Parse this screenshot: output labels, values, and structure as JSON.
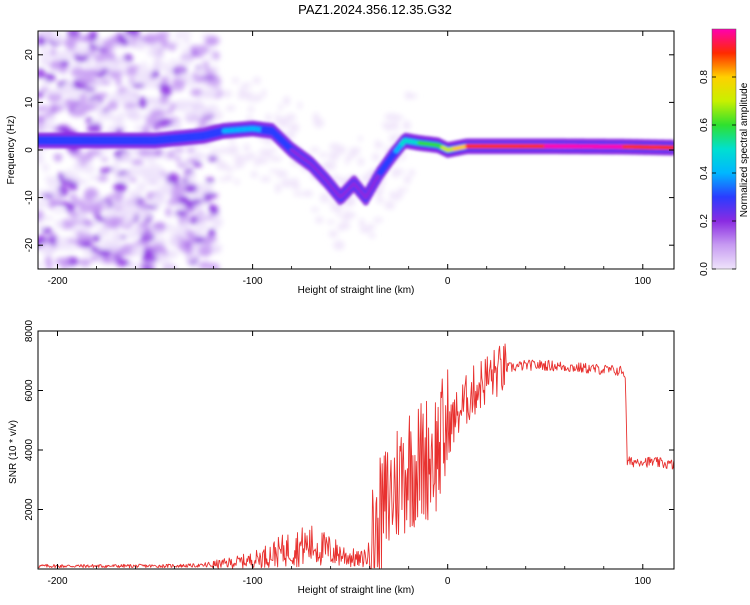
{
  "title": "PAZ1.2024.356.12.35.G32",
  "colors": {
    "snr_line": "#e8312f",
    "spectrogram_palette": [
      "#efe4fb",
      "#c79bf2",
      "#8a2be2",
      "#2a3cff",
      "#00b7ff",
      "#00e0d0",
      "#2fe02f",
      "#c8f000",
      "#ffd000",
      "#ff2a00",
      "#ff00b0"
    ]
  },
  "chart_data": [
    {
      "type": "heatmap",
      "xlabel": "Height of straight line (km)",
      "ylabel": "Frequency (Hz)",
      "xlim": [
        -210,
        116
      ],
      "ylim": [
        -25,
        25
      ],
      "xticks": [
        -200,
        -100,
        0,
        100
      ],
      "yticks": [
        -20,
        -10,
        0,
        10,
        20
      ],
      "grid": false,
      "colorbar": {
        "label": "Normalized spectral amplitude",
        "range": [
          0,
          1
        ],
        "ticks": [
          0.0,
          0.2,
          0.4,
          0.6,
          0.8
        ]
      },
      "ridge": {
        "x": [
          -210,
          -180,
          -150,
          -125,
          -115,
          -100,
          -90,
          -80,
          -70,
          -62,
          -55,
          -48,
          -42,
          -35,
          -28,
          -22,
          -15,
          -5,
          0,
          10,
          50,
          90,
          116
        ],
        "frequency": [
          2,
          2,
          2,
          3,
          4,
          4.5,
          4,
          0,
          -3,
          -6.5,
          -10,
          -7,
          -10,
          -5,
          -1,
          2,
          1.5,
          1,
          0,
          0.8,
          0.8,
          0.7,
          0.5
        ],
        "amplitude": [
          0.3,
          0.3,
          0.25,
          0.3,
          0.35,
          0.4,
          0.3,
          0.25,
          0.2,
          0.15,
          0.2,
          0.25,
          0.2,
          0.25,
          0.3,
          0.5,
          0.55,
          0.6,
          0.7,
          0.85,
          0.95,
          0.95,
          0.85
        ]
      }
    },
    {
      "type": "line",
      "xlabel": "Height of straight line (km)",
      "ylabel": "SNR (10 * v/v)",
      "xlim": [
        -210,
        116
      ],
      "ylim": [
        0,
        8000
      ],
      "xticks": [
        -200,
        -100,
        0,
        100
      ],
      "yticks": [
        2000,
        4000,
        6000,
        8000
      ],
      "grid": false,
      "series": [
        {
          "x": [
            -210,
            -180,
            -150,
            -125,
            -115,
            -100,
            -90,
            -80,
            -70,
            -60,
            -50,
            -45,
            -40,
            -35,
            -30,
            -25,
            -20,
            -15,
            -10,
            -5,
            0,
            5,
            10,
            15,
            20,
            25,
            30,
            40,
            50,
            60,
            70,
            80,
            90,
            91,
            92,
            95,
            100,
            102,
            105,
            110,
            116
          ],
          "values": [
            100,
            100,
            100,
            120,
            180,
            300,
            500,
            700,
            800,
            600,
            400,
            300,
            500,
            1500,
            2400,
            3000,
            3500,
            3500,
            3800,
            4000,
            4700,
            5200,
            5700,
            6100,
            6400,
            6600,
            6750,
            6850,
            6850,
            6800,
            6750,
            6700,
            6650,
            6500,
            3600,
            3600,
            3650,
            3600,
            3600,
            3550,
            3500
          ]
        }
      ]
    }
  ]
}
